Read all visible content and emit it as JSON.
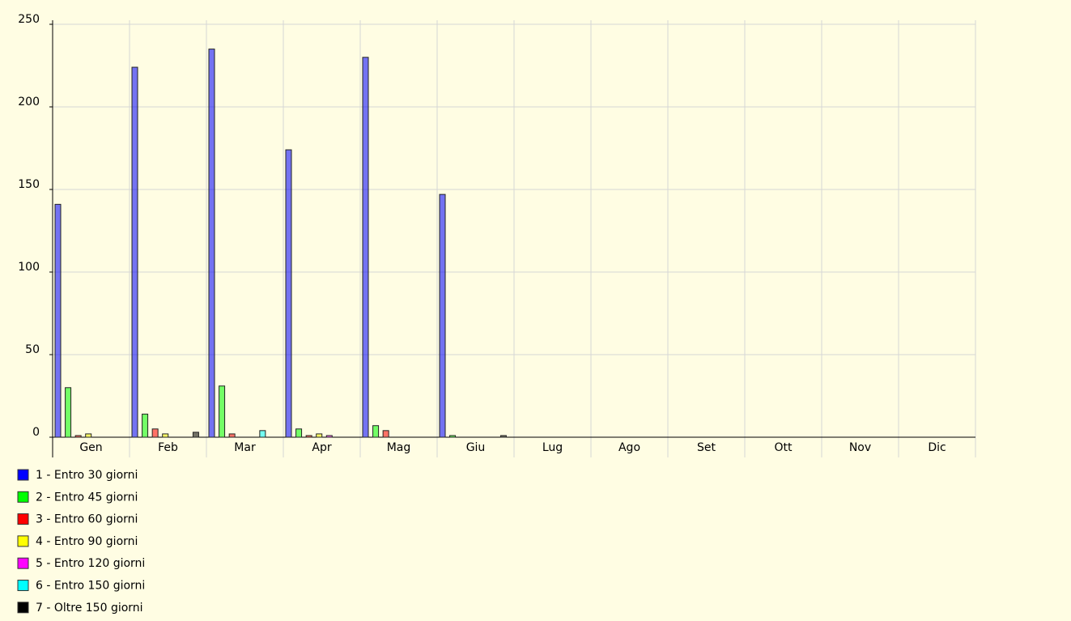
{
  "chart_data": {
    "type": "bar",
    "categories": [
      "Gen",
      "Feb",
      "Mar",
      "Apr",
      "Mag",
      "Giu",
      "Lug",
      "Ago",
      "Set",
      "Ott",
      "Nov",
      "Dic"
    ],
    "series": [
      {
        "name": "1 - Entro 30 giorni",
        "color": "#0000ff",
        "values": [
          141,
          224,
          235,
          174,
          230,
          147,
          0,
          0,
          0,
          0,
          0,
          0
        ]
      },
      {
        "name": "2 - Entro 45 giorni",
        "color": "#00ff00",
        "values": [
          30,
          14,
          31,
          5,
          7,
          1,
          0,
          0,
          0,
          0,
          0,
          0
        ]
      },
      {
        "name": "3 - Entro 60 giorni",
        "color": "#ff0000",
        "values": [
          1,
          5,
          2,
          1,
          4,
          0,
          0,
          0,
          0,
          0,
          0,
          0
        ]
      },
      {
        "name": "4 - Entro 90 giorni",
        "color": "#ffff00",
        "values": [
          2,
          2,
          0,
          2,
          0,
          0,
          0,
          0,
          0,
          0,
          0,
          0
        ]
      },
      {
        "name": "5 - Entro 120 giorni",
        "color": "#ff00ff",
        "values": [
          0,
          0,
          0,
          1,
          0,
          0,
          0,
          0,
          0,
          0,
          0,
          0
        ]
      },
      {
        "name": "6 - Entro 150 giorni",
        "color": "#00ffff",
        "values": [
          0,
          0,
          4,
          0,
          0,
          0,
          0,
          0,
          0,
          0,
          0,
          0
        ]
      },
      {
        "name": "7 - Oltre 150 giorni",
        "color": "#000000",
        "values": [
          0,
          3,
          0,
          0,
          0,
          1,
          0,
          0,
          0,
          0,
          0,
          0
        ]
      }
    ],
    "ylim": [
      0,
      250
    ],
    "yticks": [
      0,
      50,
      100,
      150,
      200,
      250
    ],
    "grid": true,
    "legend": "bottom-left"
  }
}
